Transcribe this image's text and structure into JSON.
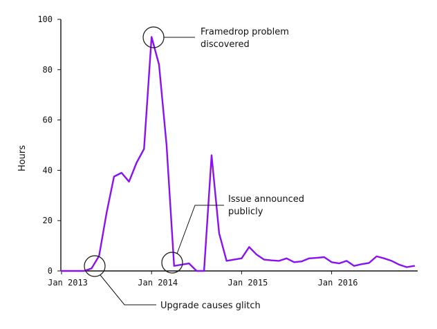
{
  "chart_data": {
    "type": "line",
    "title": "",
    "xlabel": "",
    "ylabel": "Hours",
    "ylim": [
      0,
      100
    ],
    "yticks": [
      0,
      20,
      40,
      60,
      80,
      100
    ],
    "xticks": [
      "Jan 2013",
      "Jan 2014",
      "Jan 2015",
      "Jan 2016"
    ],
    "line_color": "#8a10f0",
    "grid": false,
    "series": [
      {
        "name": "",
        "x": [
          "2013-01",
          "2013-02",
          "2013-03",
          "2013-04",
          "2013-05",
          "2013-06",
          "2013-07",
          "2013-08",
          "2013-09",
          "2013-10",
          "2013-11",
          "2013-12",
          "2014-01",
          "2014-02",
          "2014-03",
          "2014-04",
          "2014-05",
          "2014-06",
          "2014-07",
          "2014-08",
          "2014-09",
          "2014-10",
          "2014-11",
          "2014-12",
          "2015-01",
          "2015-02",
          "2015-03",
          "2015-04",
          "2015-05",
          "2015-06",
          "2015-07",
          "2015-08",
          "2015-09",
          "2015-10",
          "2015-11",
          "2015-12",
          "2016-01",
          "2016-02",
          "2016-03",
          "2016-04",
          "2016-05",
          "2016-06",
          "2016-07",
          "2016-08",
          "2016-09",
          "2016-10",
          "2016-11",
          "2016-12"
        ],
        "values": [
          0,
          0,
          0,
          0,
          1,
          6,
          23,
          37.5,
          39,
          35.5,
          43,
          48.5,
          93,
          82,
          50,
          2,
          2.5,
          3,
          0,
          0,
          46,
          15,
          4,
          4.5,
          5,
          9.5,
          6.5,
          4.5,
          4.2,
          4,
          5,
          3.5,
          3.8,
          5,
          5.2,
          5.5,
          3.5,
          3,
          4,
          2,
          2.7,
          3.2,
          5.8,
          5,
          4,
          2.5,
          1.5,
          2
        ]
      }
    ],
    "annotations": [
      {
        "label_lines": [
          "Framedrop problem",
          "discovered"
        ],
        "at": "2014-01",
        "value": 93
      },
      {
        "label_lines": [
          "Issue announced",
          "publicly"
        ],
        "at": "2014-04",
        "value": 2
      },
      {
        "label_lines": [
          "Upgrade causes glitch"
        ],
        "at": "2013-05",
        "value": 1
      }
    ]
  }
}
